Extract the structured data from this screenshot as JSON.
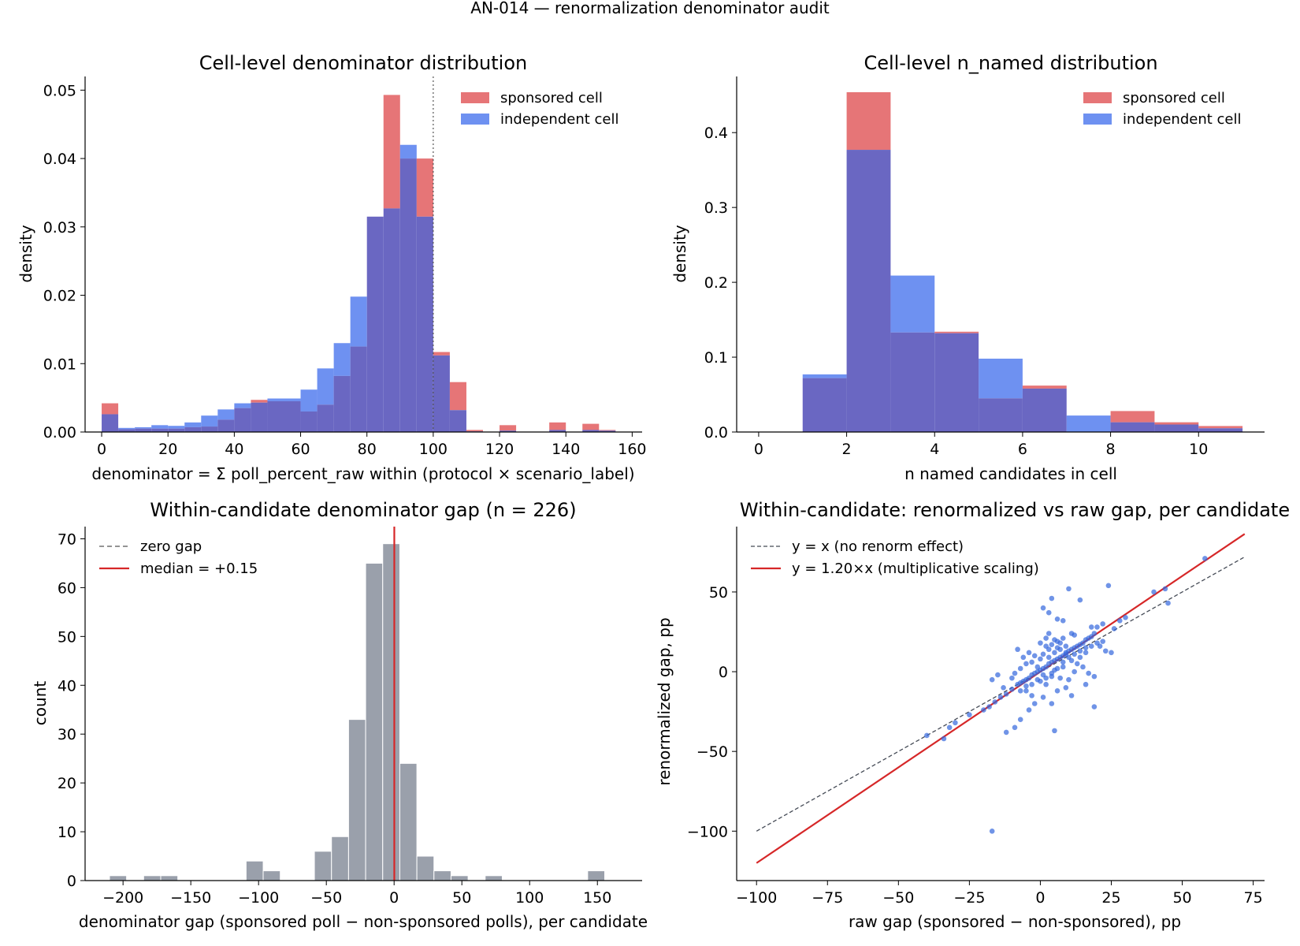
{
  "suptitle": "AN-014 — renormalization denominator audit",
  "colors": {
    "sponsored": "#e15759",
    "independent": "#4e79ee",
    "overlap": "#6a67c2",
    "gap_bar": "#9aa0ab",
    "median": "#d62728",
    "identity": "#444a55",
    "scatter": "#3366dd"
  },
  "chart_data": [
    {
      "type": "bar",
      "title": "Cell-level denominator distribution",
      "xlabel": "denominator = Σ poll_percent_raw within (protocol × scenario_label)",
      "ylabel": "density",
      "xlim": [
        -5,
        163
      ],
      "ylim": [
        0,
        0.052
      ],
      "xticks": [
        0,
        20,
        40,
        60,
        80,
        100,
        120,
        140,
        160
      ],
      "yticks": [
        0.0,
        0.01,
        0.02,
        0.03,
        0.04,
        0.05
      ],
      "yticklabels": [
        "0.00",
        "0.01",
        "0.02",
        "0.03",
        "0.04",
        "0.05"
      ],
      "vline": 100,
      "legend": {
        "position": "top-right",
        "entries": [
          "sponsored cell",
          "independent cell"
        ]
      },
      "bin_edges": [
        0,
        5,
        10,
        15,
        20,
        25,
        30,
        35,
        40,
        45,
        50,
        55,
        60,
        65,
        70,
        75,
        80,
        85,
        90,
        95,
        100,
        105,
        110,
        115,
        120,
        125,
        130,
        135,
        140,
        145,
        150,
        155
      ],
      "series": [
        {
          "name": "sponsored cell",
          "values": [
            0.0042,
            0.0004,
            0.0005,
            0.0005,
            0.0005,
            0.0007,
            0.0008,
            0.0018,
            0.0035,
            0.0047,
            0.0045,
            0.0045,
            0.003,
            0.004,
            0.0082,
            0.0125,
            0.0315,
            0.0493,
            0.04,
            0.04,
            0.0117,
            0.0073,
            0.0003,
            0.0,
            0.001,
            0.0,
            0.0,
            0.0014,
            0.0,
            0.0012,
            0.0003
          ]
        },
        {
          "name": "independent cell",
          "values": [
            0.0026,
            0.0006,
            0.0007,
            0.001,
            0.0009,
            0.0014,
            0.0024,
            0.0033,
            0.0042,
            0.0043,
            0.0049,
            0.0049,
            0.0062,
            0.0093,
            0.013,
            0.0198,
            0.0315,
            0.0327,
            0.042,
            0.0315,
            0.0112,
            0.0032,
            0.0001,
            0.0,
            0.0002,
            0.0,
            0.0,
            0.0003,
            0.0,
            0.0003,
            0.0002
          ]
        }
      ]
    },
    {
      "type": "bar",
      "title": "Cell-level n_named distribution",
      "xlabel": "n named candidates in cell",
      "ylabel": "density",
      "xlim": [
        -0.5,
        11.5
      ],
      "ylim": [
        0,
        0.475
      ],
      "xticks": [
        0,
        2,
        4,
        6,
        8,
        10
      ],
      "yticks": [
        0.0,
        0.1,
        0.2,
        0.3,
        0.4
      ],
      "yticklabels": [
        "0.0",
        "0.1",
        "0.2",
        "0.3",
        "0.4"
      ],
      "legend": {
        "position": "top-right",
        "entries": [
          "sponsored cell",
          "independent cell"
        ]
      },
      "bin_edges": [
        1,
        2,
        3,
        4,
        5,
        6,
        7,
        8,
        9,
        10,
        11
      ],
      "series": [
        {
          "name": "sponsored cell",
          "values": [
            0.072,
            0.454,
            0.133,
            0.134,
            0.045,
            0.062,
            0.0,
            0.028,
            0.013,
            0.008
          ]
        },
        {
          "name": "independent cell",
          "values": [
            0.077,
            0.377,
            0.209,
            0.132,
            0.098,
            0.058,
            0.022,
            0.013,
            0.01,
            0.005
          ]
        }
      ]
    },
    {
      "type": "bar",
      "title": "Within-candidate denominator gap (n = 226)",
      "xlabel": "denominator gap (sponsored poll − non-sponsored polls), per candidate",
      "ylabel": "count",
      "xlim": [
        -228,
        183
      ],
      "ylim": [
        0,
        72.5
      ],
      "xticks": [
        -200,
        -150,
        -100,
        -50,
        0,
        50,
        100,
        150
      ],
      "xticklabels": [
        "−200",
        "−150",
        "−100",
        "−50",
        "0",
        "50",
        "100",
        "150"
      ],
      "yticks": [
        0,
        10,
        20,
        30,
        40,
        50,
        60,
        70
      ],
      "zero_line": 0,
      "median": 0.15,
      "legend": {
        "position": "top-left",
        "entries": [
          "zero gap",
          "median = +0.15"
        ]
      },
      "bin_edges": [
        -210,
        -197.4,
        -184.8,
        -172.2,
        -159.6,
        -147,
        -134.4,
        -121.8,
        -109.2,
        -96.6,
        -84,
        -71.4,
        -58.8,
        -46.2,
        -33.6,
        -21,
        -8.4,
        4.2,
        16.8,
        29.4,
        42,
        54.6,
        67.2,
        79.8,
        92.4,
        105,
        117.6,
        130.2,
        142.8,
        155.4,
        168
      ],
      "values": [
        1,
        0,
        1,
        1,
        0,
        0,
        0,
        0,
        4,
        2,
        0,
        0,
        6,
        9,
        33,
        65,
        69,
        24,
        5,
        2,
        1,
        0,
        1,
        0,
        0,
        0,
        0,
        0,
        2,
        0
      ]
    },
    {
      "type": "scatter",
      "title": "Within-candidate: renormalized vs raw gap, per candidate",
      "xlabel": "raw gap (sponsored − non-sponsored), pp",
      "ylabel": "renormalized gap, pp",
      "xlim": [
        -107,
        79
      ],
      "ylim": [
        -131,
        91
      ],
      "xticks": [
        -100,
        -75,
        -50,
        -25,
        0,
        25,
        50,
        75
      ],
      "xticklabels": [
        "−100",
        "−75",
        "−50",
        "−25",
        "0",
        "25",
        "50",
        "75"
      ],
      "yticks": [
        -100,
        -50,
        0,
        50
      ],
      "yticklabels": [
        "−100",
        "−50",
        "0",
        "50"
      ],
      "lines": [
        {
          "name": "y = x (no renorm effect)",
          "slope": 1.0,
          "x": [
            -100,
            72
          ]
        },
        {
          "name": "y = 1.20×x  (multiplicative scaling)",
          "slope": 1.2,
          "x": [
            -100,
            72
          ]
        }
      ],
      "legend": {
        "position": "top-left",
        "entries": [
          "y = x (no renorm effect)",
          "y = 1.20×x  (multiplicative scaling)"
        ]
      },
      "points": [
        [
          58,
          71
        ],
        [
          44,
          52
        ],
        [
          40,
          50
        ],
        [
          45,
          43
        ],
        [
          30,
          34
        ],
        [
          28,
          32
        ],
        [
          26,
          27
        ],
        [
          24,
          54
        ],
        [
          22,
          30
        ],
        [
          20,
          28
        ],
        [
          19,
          24
        ],
        [
          18,
          22
        ],
        [
          17,
          21
        ],
        [
          16,
          20
        ],
        [
          15,
          18
        ],
        [
          14,
          17
        ],
        [
          13,
          16
        ],
        [
          12,
          15
        ],
        [
          11,
          14
        ],
        [
          10,
          13
        ],
        [
          9,
          12
        ],
        [
          8,
          10
        ],
        [
          7,
          9
        ],
        [
          6,
          8
        ],
        [
          5,
          7
        ],
        [
          4,
          6
        ],
        [
          3,
          5
        ],
        [
          2,
          3
        ],
        [
          1,
          2
        ],
        [
          0,
          1
        ],
        [
          -1,
          0
        ],
        [
          -2,
          -1
        ],
        [
          -3,
          -2
        ],
        [
          -4,
          -4
        ],
        [
          -5,
          -5
        ],
        [
          -6,
          -6
        ],
        [
          -7,
          -7
        ],
        [
          -8,
          -8
        ],
        [
          -10,
          -11
        ],
        [
          -12,
          -14
        ],
        [
          -14,
          -16
        ],
        [
          -16,
          -19
        ],
        [
          -18,
          -22
        ],
        [
          -20,
          -24
        ],
        [
          -25,
          -27
        ],
        [
          -30,
          -32
        ],
        [
          -32,
          -35
        ],
        [
          -34,
          -42
        ],
        [
          -40,
          -40
        ],
        [
          -17,
          -100
        ],
        [
          10,
          52
        ],
        [
          14,
          45
        ],
        [
          4,
          46
        ],
        [
          1,
          40
        ],
        [
          3,
          37
        ],
        [
          6,
          33
        ],
        [
          8,
          32
        ],
        [
          18,
          28
        ],
        [
          12,
          23
        ],
        [
          5,
          20
        ],
        [
          2,
          21
        ],
        [
          0,
          18
        ],
        [
          3,
          14
        ],
        [
          6,
          15
        ],
        [
          9,
          11
        ],
        [
          11,
          7
        ],
        [
          13,
          5
        ],
        [
          15,
          3
        ],
        [
          17,
          -1
        ],
        [
          19,
          -3
        ],
        [
          16,
          -8
        ],
        [
          10,
          -5
        ],
        [
          7,
          -4
        ],
        [
          4,
          -3
        ],
        [
          1,
          -2
        ],
        [
          -1,
          3
        ],
        [
          -3,
          6
        ],
        [
          -5,
          5
        ],
        [
          -7,
          2
        ],
        [
          -9,
          -1
        ],
        [
          5,
          1
        ],
        [
          8,
          3
        ],
        [
          12,
          0
        ],
        [
          14,
          9
        ],
        [
          16,
          12
        ],
        [
          21,
          16
        ],
        [
          23,
          13
        ],
        [
          25,
          12
        ],
        [
          7,
          18
        ],
        [
          3,
          24
        ],
        [
          -2,
          10
        ],
        [
          -4,
          12
        ],
        [
          -6,
          9
        ],
        [
          -8,
          14
        ],
        [
          -10,
          -4
        ],
        [
          -13,
          -10
        ],
        [
          -15,
          -2
        ],
        [
          -17,
          -5
        ],
        [
          2,
          -8
        ],
        [
          6,
          -12
        ],
        [
          9,
          -10
        ],
        [
          11,
          -15
        ],
        [
          4,
          -20
        ],
        [
          1,
          -16
        ],
        [
          -2,
          -20
        ],
        [
          -4,
          -24
        ],
        [
          -7,
          -30
        ],
        [
          -9,
          -35
        ],
        [
          -12,
          -38
        ],
        [
          5,
          -37
        ],
        [
          19,
          -22
        ],
        [
          -5,
          -12
        ],
        [
          -3,
          -15
        ],
        [
          0,
          -6
        ],
        [
          2,
          -4
        ],
        [
          4,
          -1
        ],
        [
          6,
          2
        ],
        [
          8,
          6
        ],
        [
          10,
          9
        ],
        [
          12,
          11
        ],
        [
          14,
          13
        ],
        [
          16,
          15
        ],
        [
          18,
          16
        ],
        [
          20,
          18
        ],
        [
          22,
          19
        ],
        [
          0,
          8
        ],
        [
          1,
          11
        ],
        [
          3,
          9
        ],
        [
          5,
          12
        ],
        [
          7,
          14
        ],
        [
          9,
          16
        ],
        [
          -1,
          -5
        ],
        [
          -3,
          -8
        ],
        [
          -5,
          -9
        ],
        [
          -7,
          -12
        ],
        [
          2,
          16
        ],
        [
          4,
          17
        ],
        [
          6,
          19
        ],
        [
          8,
          21
        ],
        [
          11,
          24
        ]
      ]
    }
  ]
}
